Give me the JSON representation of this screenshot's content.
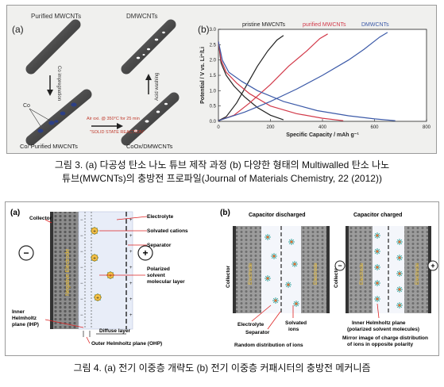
{
  "figure3": {
    "panel_a": {
      "label": "(a)",
      "purified_label": "Purified MWCNTs",
      "dmwcnts_label": "DMWCNTs",
      "co_impregnation": "Co impregnation",
      "acid_washing": "Acid washing",
      "air_oxidation": "Air oxi. @ 350°C for 25 min",
      "solid_state": "\"SOLID STATE REACTION\"",
      "co_label": "Co",
      "co_purified_label": "Co/ Purified MWCNTs",
      "coox_label": "CoOx/DMWCNTs"
    },
    "panel_b": {
      "label": "(b)",
      "legend": {
        "pristine": "pristine MWCNTs",
        "purified": "purified MWCNTs",
        "dmwcnts": "DMWCNTs"
      },
      "colors": {
        "pristine": "#222222",
        "purified": "#d23a4a",
        "dmwcnts": "#3c5aa8"
      }
    }
  },
  "chart_data": {
    "type": "line",
    "xlabel": "Specific Capacity / mAh g⁻¹",
    "ylabel": "Potential / V vs. Li⁺/Li",
    "xlim": [
      0,
      800
    ],
    "ylim": [
      0,
      3.0
    ],
    "x_ticks": [
      "0",
      "200",
      "400",
      "600",
      "800"
    ],
    "y_ticks": [
      "0.0",
      "0.5",
      "1.0",
      "1.5",
      "2.0",
      "2.5",
      "3.0"
    ],
    "grid": false,
    "legend_position": "top",
    "series": [
      {
        "name": "pristine MWCNTs",
        "key": "pristine",
        "discharge": [
          [
            0,
            2.6
          ],
          [
            10,
            1.9
          ],
          [
            30,
            1.5
          ],
          [
            60,
            1.15
          ],
          [
            100,
            0.8
          ],
          [
            150,
            0.45
          ],
          [
            200,
            0.2
          ],
          [
            250,
            0.05
          ]
        ],
        "charge": [
          [
            0,
            0.02
          ],
          [
            30,
            0.15
          ],
          [
            70,
            0.6
          ],
          [
            110,
            1.2
          ],
          [
            150,
            1.8
          ],
          [
            190,
            2.3
          ],
          [
            225,
            2.65
          ],
          [
            250,
            2.8
          ]
        ]
      },
      {
        "name": "purified MWCNTs",
        "key": "purified",
        "discharge": [
          [
            0,
            2.6
          ],
          [
            10,
            2.0
          ],
          [
            30,
            1.6
          ],
          [
            70,
            1.25
          ],
          [
            120,
            0.9
          ],
          [
            200,
            0.5
          ],
          [
            300,
            0.25
          ],
          [
            400,
            0.1
          ],
          [
            480,
            0.02
          ]
        ],
        "charge": [
          [
            0,
            0.02
          ],
          [
            60,
            0.2
          ],
          [
            120,
            0.6
          ],
          [
            200,
            1.2
          ],
          [
            270,
            1.8
          ],
          [
            340,
            2.3
          ],
          [
            390,
            2.7
          ],
          [
            420,
            2.85
          ]
        ]
      },
      {
        "name": "DMWCNTs",
        "key": "dmwcnts",
        "discharge": [
          [
            0,
            2.6
          ],
          [
            15,
            2.0
          ],
          [
            40,
            1.6
          ],
          [
            90,
            1.3
          ],
          [
            150,
            1.0
          ],
          [
            250,
            0.65
          ],
          [
            380,
            0.35
          ],
          [
            500,
            0.18
          ],
          [
            600,
            0.08
          ],
          [
            680,
            0.02
          ]
        ],
        "charge": [
          [
            0,
            0.02
          ],
          [
            100,
            0.3
          ],
          [
            200,
            0.65
          ],
          [
            300,
            1.05
          ],
          [
            400,
            1.5
          ],
          [
            500,
            2.0
          ],
          [
            560,
            2.35
          ],
          [
            620,
            2.75
          ],
          [
            650,
            2.9
          ]
        ]
      }
    ]
  },
  "captions": {
    "fig3_line1": "그림 3. (a) 다공성 탄소 나노 튜브 제작 과정 (b) 다양한 형태의 Multiwalled 탄소 나노",
    "fig3_line2": "튜브(MWCNTs)의 충방전 프로파일(Journal of Materials Chemistry, 22 (2012))",
    "fig4": "그림 4. (a) 전기 이중층 개략도 (b) 전기 이중층 커패시터의 충방전 메커니즘"
  },
  "figure4": {
    "panel_a": {
      "label": "(a)",
      "collector": "Collector",
      "electrode": "Negative Electrode",
      "electrolyte": "Electrolyte",
      "solvated_cations": "Solvated cations",
      "separator": "Separator",
      "polarized": [
        "Polarized",
        "solvent",
        "molecular layer"
      ],
      "inner": [
        "Inner",
        "Helmholtz",
        "plane (IHP)"
      ],
      "diffuse": "Diffuse layer",
      "outer": "Outer Helmholtz plane (OHP)",
      "minus": "−",
      "plus": "+"
    },
    "panel_b": {
      "label": "(b)",
      "discharged": "Capacitor discharged",
      "charged": "Capacitor charged",
      "collector": "Collector",
      "electrode": "Electrode",
      "electrolyte_label": "Electrolyte",
      "separator": "Separator",
      "solvated_ions": [
        "Solvated",
        "ions"
      ],
      "random": "Random distribution of ions",
      "inner_plane": [
        "Inner Helmholtz plane",
        "(polarized solvent molecules)"
      ],
      "mirror": [
        "Mirror image of charge distribution",
        "of ions in opposite polarity"
      ],
      "minus": "−",
      "plus": "+"
    }
  }
}
